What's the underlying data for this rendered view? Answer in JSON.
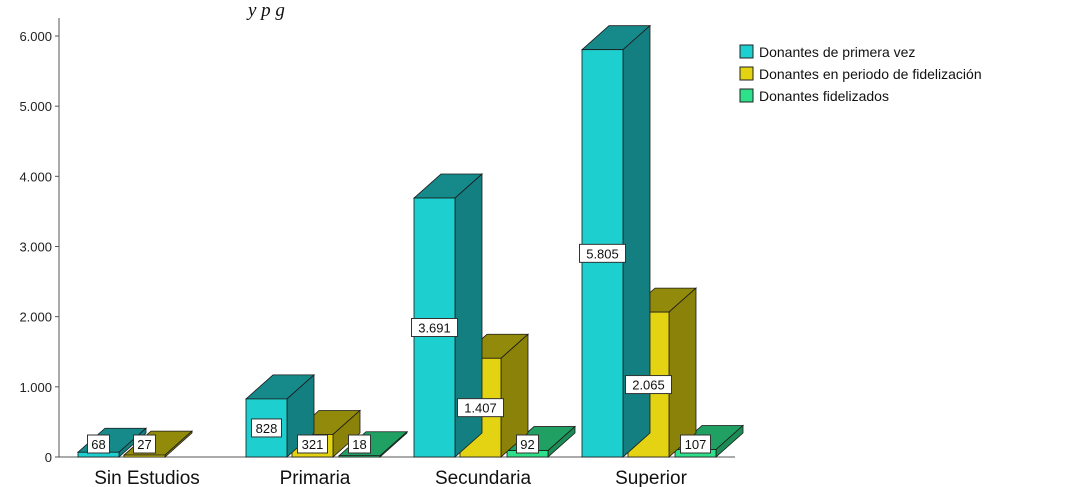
{
  "caption_fragment": "y p                            g",
  "chart_data": {
    "type": "bar",
    "categories": [
      "Sin Estudios",
      "Primaria",
      "Secundaria",
      "Superior"
    ],
    "series": [
      {
        "name": "Donantes de primera vez",
        "values": [
          68,
          828,
          3691,
          5805
        ],
        "labels": [
          "68",
          "828",
          "3.691",
          "5.805"
        ],
        "color": "#1ECFCF",
        "side_color": "#137F80",
        "top_color": "#168A8B"
      },
      {
        "name": "Donantes en periodo de fidelización",
        "values": [
          27,
          321,
          1407,
          2065
        ],
        "labels": [
          "27",
          "321",
          "1.407",
          "2.065"
        ],
        "color": "#E3D312",
        "side_color": "#8B8209",
        "top_color": "#928A0A"
      },
      {
        "name": "Donantes fidelizados",
        "values": [
          0,
          18,
          92,
          107
        ],
        "labels": [
          "",
          "18",
          "92",
          "107"
        ],
        "color": "#2EE08A",
        "side_color": "#1C8C56",
        "top_color": "#20A062"
      }
    ],
    "y_ticks": [
      "0",
      "1.000",
      "2.000",
      "3.000",
      "4.000",
      "5.000",
      "6.000"
    ],
    "ylim": [
      0,
      6000
    ],
    "legend_position": "top-right",
    "grid": false
  }
}
